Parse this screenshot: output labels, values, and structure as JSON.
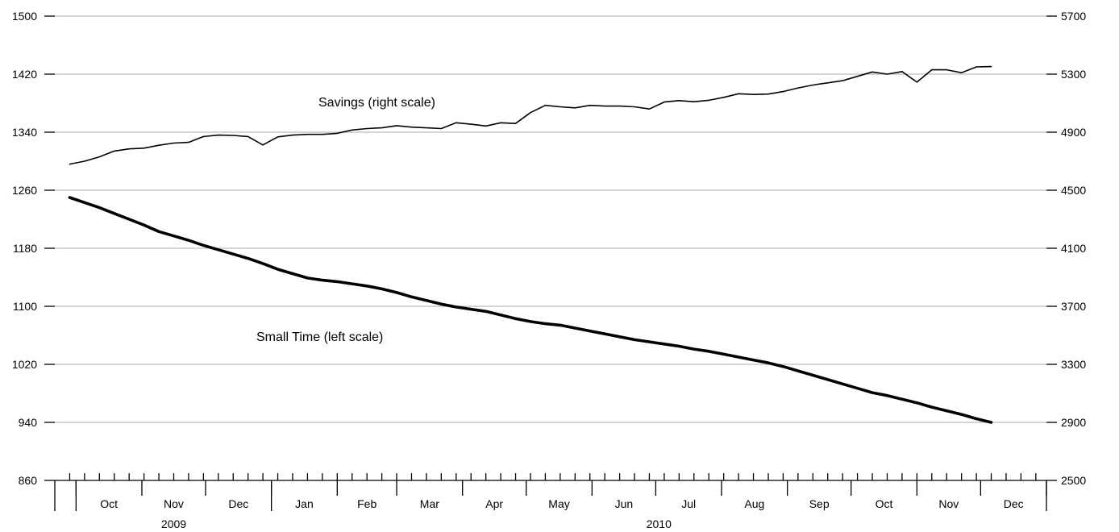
{
  "chart_data": {
    "type": "line",
    "grid": "horizontal",
    "legend": "none",
    "y_left": {
      "min": 860,
      "max": 1500,
      "ticks": [
        860,
        940,
        1020,
        1100,
        1180,
        1260,
        1340,
        1420,
        1500
      ]
    },
    "y_right": {
      "min": 2500,
      "max": 5700,
      "ticks": [
        2500,
        2900,
        3300,
        3700,
        4100,
        4500,
        4900,
        5300,
        5700
      ]
    },
    "x_axis": {
      "start": "2009-09-21",
      "end": "2011-01-01",
      "months": [
        {
          "label": "Oct",
          "start": "2009-10-01",
          "end": "2009-11-01"
        },
        {
          "label": "Nov",
          "start": "2009-11-01",
          "end": "2009-12-01"
        },
        {
          "label": "Dec",
          "start": "2009-12-01",
          "end": "2010-01-01"
        },
        {
          "label": "Jan",
          "start": "2010-01-01",
          "end": "2010-02-01"
        },
        {
          "label": "Feb",
          "start": "2010-02-01",
          "end": "2010-03-01"
        },
        {
          "label": "Mar",
          "start": "2010-03-01",
          "end": "2010-04-01"
        },
        {
          "label": "Apr",
          "start": "2010-04-01",
          "end": "2010-05-01"
        },
        {
          "label": "May",
          "start": "2010-05-01",
          "end": "2010-06-01"
        },
        {
          "label": "Jun",
          "start": "2010-06-01",
          "end": "2010-07-01"
        },
        {
          "label": "Jul",
          "start": "2010-07-01",
          "end": "2010-08-01"
        },
        {
          "label": "Aug",
          "start": "2010-08-01",
          "end": "2010-09-01"
        },
        {
          "label": "Sep",
          "start": "2010-09-01",
          "end": "2010-10-01"
        },
        {
          "label": "Oct",
          "start": "2010-10-01",
          "end": "2010-11-01"
        },
        {
          "label": "Nov",
          "start": "2010-11-01",
          "end": "2010-12-01"
        },
        {
          "label": "Dec",
          "start": "2010-12-01",
          "end": "2011-01-01"
        }
      ],
      "years": [
        {
          "label": "2009",
          "start": "2009-10-01",
          "end": "2010-01-01"
        },
        {
          "label": "2010",
          "start": "2010-01-01",
          "end": "2011-01-01"
        }
      ],
      "major_ticks": [
        "2009-10-01",
        "2009-11-01",
        "2009-12-01",
        "2010-01-01",
        "2010-02-01",
        "2010-03-01",
        "2010-04-01",
        "2010-05-01",
        "2010-06-01",
        "2010-07-01",
        "2010-08-01",
        "2010-09-01",
        "2010-10-01",
        "2010-11-01",
        "2010-12-01",
        "2011-01-01"
      ]
    },
    "series": [
      {
        "name": "Savings (right scale)",
        "axis": "right",
        "line_width": 1.6,
        "x": [
          "2009-09-28",
          "2009-10-05",
          "2009-10-12",
          "2009-10-19",
          "2009-10-26",
          "2009-11-02",
          "2009-11-09",
          "2009-11-16",
          "2009-11-23",
          "2009-11-30",
          "2009-12-07",
          "2009-12-14",
          "2009-12-21",
          "2009-12-28",
          "2010-01-04",
          "2010-01-11",
          "2010-01-18",
          "2010-01-25",
          "2010-02-01",
          "2010-02-08",
          "2010-02-15",
          "2010-02-22",
          "2010-03-01",
          "2010-03-08",
          "2010-03-15",
          "2010-03-22",
          "2010-03-29",
          "2010-04-05",
          "2010-04-12",
          "2010-04-19",
          "2010-04-26",
          "2010-05-03",
          "2010-05-10",
          "2010-05-17",
          "2010-05-24",
          "2010-05-31",
          "2010-06-07",
          "2010-06-14",
          "2010-06-21",
          "2010-06-28",
          "2010-07-05",
          "2010-07-12",
          "2010-07-19",
          "2010-07-26",
          "2010-08-02",
          "2010-08-09",
          "2010-08-16",
          "2010-08-23",
          "2010-08-30",
          "2010-09-06",
          "2010-09-13",
          "2010-09-20",
          "2010-09-27",
          "2010-10-04",
          "2010-10-11",
          "2010-10-18",
          "2010-10-25",
          "2010-11-01",
          "2010-11-08",
          "2010-11-15",
          "2010-11-22",
          "2010-11-29",
          "2010-12-06"
        ],
        "values": [
          4680,
          4700,
          4730,
          4770,
          4785,
          4790,
          4810,
          4825,
          4830,
          4870,
          4880,
          4878,
          4870,
          4812,
          4868,
          4880,
          4885,
          4885,
          4892,
          4915,
          4925,
          4930,
          4945,
          4935,
          4930,
          4925,
          4965,
          4955,
          4943,
          4965,
          4960,
          5035,
          5085,
          5075,
          5068,
          5085,
          5080,
          5080,
          5075,
          5060,
          5108,
          5118,
          5110,
          5120,
          5140,
          5165,
          5160,
          5163,
          5180,
          5205,
          5225,
          5240,
          5255,
          5285,
          5315,
          5300,
          5318,
          5245,
          5330,
          5330,
          5310,
          5350,
          5352
        ]
      },
      {
        "name": "Small Time (left scale)",
        "axis": "left",
        "line_width": 3.6,
        "x": [
          "2009-09-28",
          "2009-10-05",
          "2009-10-12",
          "2009-10-19",
          "2009-10-26",
          "2009-11-02",
          "2009-11-09",
          "2009-11-16",
          "2009-11-23",
          "2009-11-30",
          "2009-12-07",
          "2009-12-14",
          "2009-12-21",
          "2009-12-28",
          "2010-01-04",
          "2010-01-11",
          "2010-01-18",
          "2010-01-25",
          "2010-02-01",
          "2010-02-08",
          "2010-02-15",
          "2010-02-22",
          "2010-03-01",
          "2010-03-08",
          "2010-03-15",
          "2010-03-22",
          "2010-03-29",
          "2010-04-05",
          "2010-04-12",
          "2010-04-19",
          "2010-04-26",
          "2010-05-03",
          "2010-05-10",
          "2010-05-17",
          "2010-05-24",
          "2010-05-31",
          "2010-06-07",
          "2010-06-14",
          "2010-06-21",
          "2010-06-28",
          "2010-07-05",
          "2010-07-12",
          "2010-07-19",
          "2010-07-26",
          "2010-08-02",
          "2010-08-09",
          "2010-08-16",
          "2010-08-23",
          "2010-08-30",
          "2010-09-06",
          "2010-09-13",
          "2010-09-20",
          "2010-09-27",
          "2010-10-04",
          "2010-10-11",
          "2010-10-18",
          "2010-10-25",
          "2010-11-01",
          "2010-11-08",
          "2010-11-15",
          "2010-11-22",
          "2010-11-29",
          "2010-12-06"
        ],
        "values": [
          1250,
          1243,
          1236,
          1228,
          1220,
          1212,
          1203,
          1197,
          1191,
          1184,
          1178,
          1172,
          1166,
          1159,
          1151,
          1145,
          1139,
          1136,
          1134,
          1131,
          1128,
          1124,
          1119,
          1113,
          1108,
          1103,
          1099,
          1096,
          1093,
          1088,
          1083,
          1079,
          1076,
          1074,
          1070,
          1066,
          1062,
          1058,
          1054,
          1051,
          1048,
          1045,
          1041,
          1038,
          1034,
          1030,
          1026,
          1022,
          1017,
          1011,
          1005,
          999,
          993,
          987,
          981,
          977,
          972,
          967,
          961,
          956,
          951,
          945,
          940
        ]
      }
    ]
  }
}
